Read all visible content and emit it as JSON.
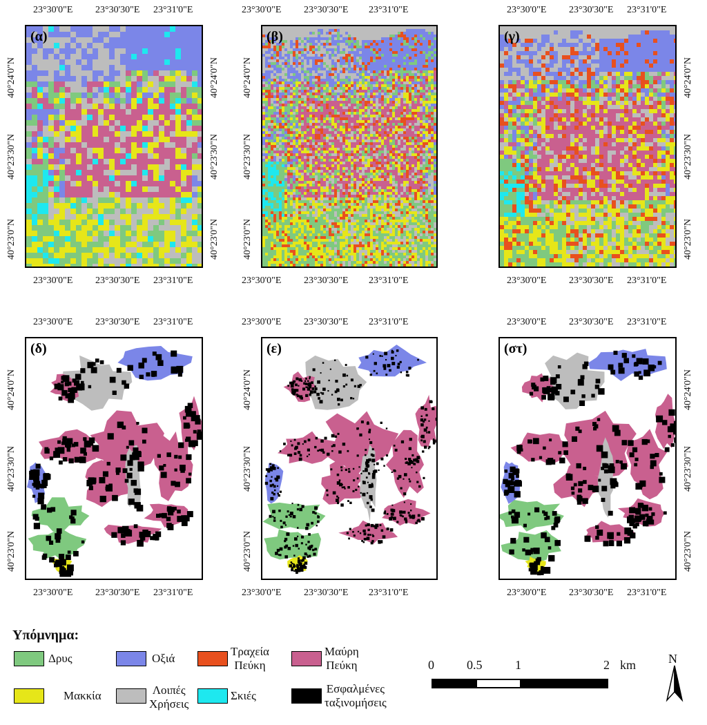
{
  "colors": {
    "oak": "#7fc97f",
    "beech": "#7b86e8",
    "rough_pine": "#e8501e",
    "black_pine": "#c9608f",
    "maquis": "#e6e619",
    "other_uses": "#bdbdbd",
    "shadows": "#1ee8ef",
    "misclassified": "#000000"
  },
  "panels": [
    {
      "label": "(α)",
      "kind": "raster_coarse"
    },
    {
      "label": "(β)",
      "kind": "raster_fine"
    },
    {
      "label": "(γ)",
      "kind": "raster_mixed"
    },
    {
      "label": "(δ)",
      "kind": "masked"
    },
    {
      "label": "(ε)",
      "kind": "masked_fine"
    },
    {
      "label": "(στ)",
      "kind": "masked"
    }
  ],
  "axes": {
    "lon_ticks": [
      "23°30'0\"E",
      "23°30'30\"E",
      "23°31'0\"E"
    ],
    "lat_ticks": [
      "40°24'0\"N",
      "40°23'30\"N",
      "40°23'0\"N"
    ]
  },
  "legend": {
    "title": "Υπόμνημα:",
    "items": [
      {
        "key": "oak",
        "label": "Δρυς"
      },
      {
        "key": "beech",
        "label": "Οξιά"
      },
      {
        "key": "rough_pine",
        "label": "Τραχεία\nΠεύκη"
      },
      {
        "key": "black_pine",
        "label": "Μαύρη\nΠεύκη"
      },
      {
        "key": "maquis",
        "label": "Μακκία"
      },
      {
        "key": "other_uses",
        "label": "Λοιπές\nΧρήσεις"
      },
      {
        "key": "shadows",
        "label": "Σκιές"
      },
      {
        "key": "misclassified",
        "label": "Εσφαλμένες\nταξινομήσεις"
      }
    ]
  },
  "scale_bar": {
    "labels": [
      "0",
      "0.5",
      "1",
      "2"
    ],
    "unit": "km"
  },
  "north_arrow": {
    "label": "N",
    "icon": "north-arrow-icon"
  }
}
